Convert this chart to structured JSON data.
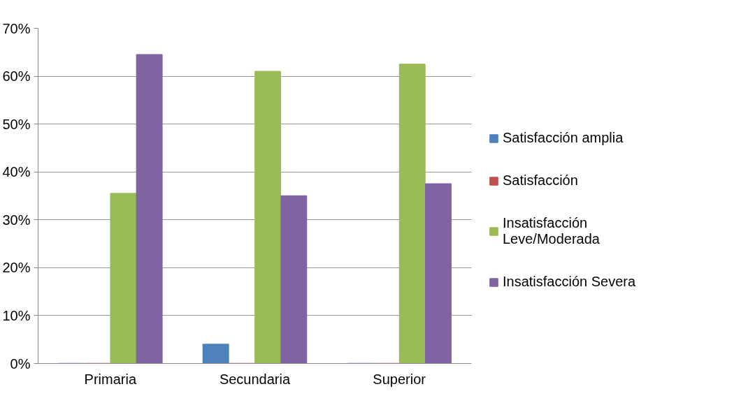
{
  "chart_data": {
    "type": "bar",
    "categories": [
      "Primaria",
      "Secundaria",
      "Superior"
    ],
    "series": [
      {
        "name": "Satisfacción amplia",
        "color": "#4f81bd",
        "values": [
          0,
          4,
          0
        ]
      },
      {
        "name": "Satisfacción",
        "color": "#c0504d",
        "values": [
          0,
          0,
          0
        ]
      },
      {
        "name": "Insatisfacción Leve/Moderada",
        "color": "#9bbb59",
        "values": [
          35.5,
          61,
          62.5
        ]
      },
      {
        "name": "Insatisfacción Severa",
        "color": "#8064a2",
        "values": [
          64.5,
          35,
          37.5
        ]
      }
    ],
    "ylim": [
      0,
      70
    ],
    "yticks": [
      {
        "value": 0,
        "label": "0%"
      },
      {
        "value": 10,
        "label": "10%"
      },
      {
        "value": 20,
        "label": "20%"
      },
      {
        "value": 30,
        "label": "30%"
      },
      {
        "value": 40,
        "label": "40%"
      },
      {
        "value": 50,
        "label": "50%"
      },
      {
        "value": 60,
        "label": "60%"
      },
      {
        "value": 70,
        "label": "70%"
      }
    ],
    "grid": "y",
    "legend": "right"
  }
}
